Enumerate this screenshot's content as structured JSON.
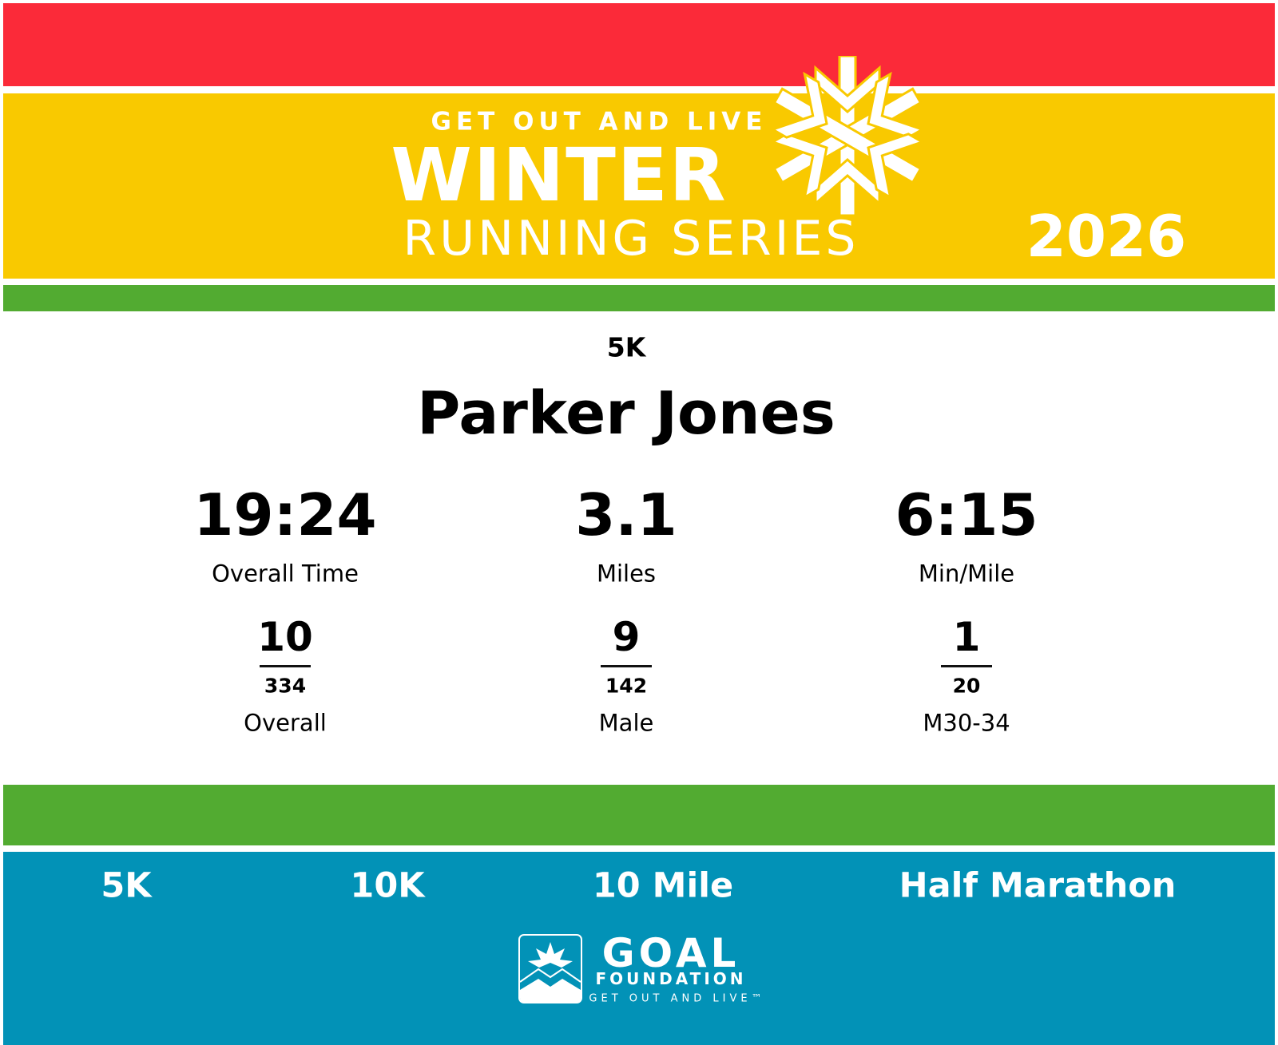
{
  "header": {
    "tagline": "GET OUT AND LIVE",
    "title": "WINTER",
    "subtitle": "RUNNING SERIES",
    "year": "2026"
  },
  "race": "5K",
  "runner": "Parker Jones",
  "stats": [
    {
      "value": "19:24",
      "label": "Overall Time"
    },
    {
      "value": 3.1,
      "label": "Miles"
    },
    {
      "value": "6:15",
      "label": "Min/Mile"
    }
  ],
  "placements": [
    {
      "place": 10,
      "total": 334,
      "label": "Overall"
    },
    {
      "place": 9,
      "total": 142,
      "label": "Male"
    },
    {
      "place": 1,
      "total": 20,
      "label": "M30-34"
    }
  ],
  "nav": [
    "5K",
    "10K",
    "10 Mile",
    "Half Marathon"
  ],
  "footer": {
    "logo_title": "GOAL",
    "logo_subtitle": "FOUNDATION",
    "logo_tagline": "GET OUT AND LIVE™"
  }
}
